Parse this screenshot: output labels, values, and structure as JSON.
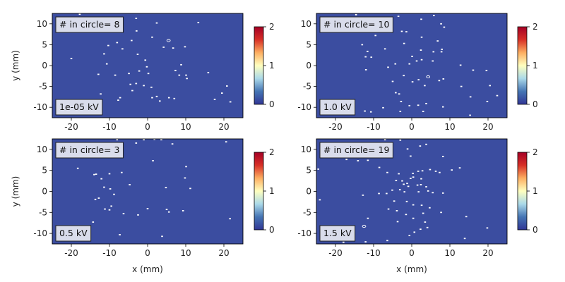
{
  "colors": {
    "background": "#3b4da0",
    "dot": "#ffffff",
    "box_fill": "#d9dceb",
    "box_edge": "#222222",
    "colormap": [
      "#313695",
      "#4575b4",
      "#abd9e9",
      "#ffffbf",
      "#fdae61",
      "#d73027",
      "#a50026"
    ]
  },
  "chart_data": [
    {
      "type": "heatmap",
      "panel": "top-left",
      "title": "",
      "xlabel": "",
      "ylabel": "y (mm)",
      "xlim": [
        -25,
        25
      ],
      "ylim": [
        -12.5,
        12.5
      ],
      "xticks": [
        -20,
        -10,
        0,
        10,
        20
      ],
      "yticks": [
        -10,
        -5,
        0,
        5,
        10
      ],
      "show_xticklabels": true,
      "show_yticklabels": true,
      "count_label": "# in circle= 8",
      "voltage_label": "1e-05 kV",
      "colorbar": {
        "ticks": [
          0,
          1,
          2
        ],
        "range": [
          0,
          2
        ]
      },
      "circle_points": [
        [
          5.5,
          6
        ]
      ],
      "points": [
        [
          -17.8,
          12.3
        ],
        [
          -11,
          11.3
        ],
        [
          -3,
          11.3
        ],
        [
          2.4,
          10.2
        ],
        [
          13.3,
          10.3
        ],
        [
          -2.9,
          8.3
        ],
        [
          1.2,
          6.8
        ],
        [
          -4.2,
          6.0
        ],
        [
          -8,
          5.5
        ],
        [
          -10.3,
          4.8
        ],
        [
          -6.6,
          4.0
        ],
        [
          -11.4,
          2.8
        ],
        [
          -2.6,
          2.7
        ],
        [
          9.8,
          4.5
        ],
        [
          4.2,
          4.4
        ],
        [
          6.7,
          4.2
        ],
        [
          -20,
          1.7
        ],
        [
          -10.7,
          0.4
        ],
        [
          -0.2,
          -0.3
        ],
        [
          -2.2,
          -1.3
        ],
        [
          -12.9,
          -2.1
        ],
        [
          -8.5,
          -2.3
        ],
        [
          -4.9,
          -1.9
        ],
        [
          0.2,
          -1.9
        ],
        [
          7.3,
          -1.2
        ],
        [
          8.3,
          -2.3
        ],
        [
          10.1,
          -2.3
        ],
        [
          15.9,
          -1.7
        ],
        [
          -4.5,
          -4.5
        ],
        [
          -3,
          -4.3
        ],
        [
          -1,
          -4.8
        ],
        [
          -4,
          -6
        ],
        [
          1,
          -5.2
        ],
        [
          -7.2,
          -7.7
        ],
        [
          1.2,
          -7.7
        ],
        [
          2.4,
          -7.4
        ],
        [
          5.6,
          -7.7
        ],
        [
          7,
          -7.9
        ],
        [
          -12.3,
          -6.8
        ],
        [
          -7.7,
          -8.3
        ],
        [
          3.2,
          -8.5
        ],
        [
          19.5,
          -6.6
        ],
        [
          20.8,
          -4.9
        ],
        [
          17.6,
          -8.1
        ],
        [
          21.7,
          -8.7
        ],
        [
          10.3,
          -3.1
        ],
        [
          -0.6,
          1.3
        ],
        [
          8.8,
          0.2
        ]
      ]
    },
    {
      "type": "heatmap",
      "panel": "top-right",
      "title": "",
      "xlabel": "",
      "ylabel": "",
      "xlim": [
        -25,
        25
      ],
      "ylim": [
        -12.5,
        12.5
      ],
      "xticks": [
        -20,
        -10,
        0,
        10,
        20
      ],
      "yticks": [
        -10,
        -5,
        0,
        5,
        10
      ],
      "show_xticklabels": true,
      "show_yticklabels": true,
      "count_label": "# in circle= 10",
      "voltage_label": "1.0 kV",
      "colorbar": {
        "ticks": [
          0,
          1,
          2
        ],
        "range": [
          0,
          2
        ]
      },
      "circle_points": [
        [
          4.3,
          -2.7
        ]
      ],
      "points": [
        [
          -14.6,
          12.2
        ],
        [
          -8.8,
          11.4
        ],
        [
          -3.5,
          11.8
        ],
        [
          2.5,
          11.1
        ],
        [
          5.8,
          12.0
        ],
        [
          7.7,
          10.0
        ],
        [
          8.5,
          9.2
        ],
        [
          -12.6,
          8.1
        ],
        [
          -9.5,
          7.2
        ],
        [
          -2.6,
          8.2
        ],
        [
          -1.4,
          8.1
        ],
        [
          2.6,
          6.8
        ],
        [
          6.8,
          5.9
        ],
        [
          7.9,
          3.9
        ],
        [
          7.8,
          3.3
        ],
        [
          5.7,
          3.3
        ],
        [
          2.4,
          3.7
        ],
        [
          -2.0,
          5.3
        ],
        [
          -7,
          4
        ],
        [
          -13,
          5
        ],
        [
          -11.6,
          3.4
        ],
        [
          -12.1,
          2.1
        ],
        [
          -10.6,
          2.0
        ],
        [
          0.1,
          2.2
        ],
        [
          1.3,
          1.1
        ],
        [
          2.6,
          1.4
        ],
        [
          -12,
          -1
        ],
        [
          -6.2,
          -0.4
        ],
        [
          -4.3,
          0.4
        ],
        [
          -0.6,
          0.4
        ],
        [
          5.5,
          1.1
        ],
        [
          12.8,
          0.1
        ],
        [
          16.1,
          -1.1
        ],
        [
          19.6,
          -1.2
        ],
        [
          -5,
          -3.8
        ],
        [
          -2.1,
          -2.4
        ],
        [
          -4.2,
          -6.5
        ],
        [
          -3.3,
          -6.8
        ],
        [
          0.2,
          -3.9
        ],
        [
          1.8,
          -3.4
        ],
        [
          3.4,
          -4.8
        ],
        [
          7.2,
          -3.6
        ],
        [
          8.3,
          -3.2
        ],
        [
          -2.8,
          -8.6
        ],
        [
          -0.6,
          -9.6
        ],
        [
          -7.5,
          -10.1
        ],
        [
          -12.3,
          -10.9
        ],
        [
          -10.7,
          -11.1
        ],
        [
          1.7,
          -9.5
        ],
        [
          3.8,
          -9.1
        ],
        [
          8.2,
          -9.9
        ],
        [
          15.3,
          -11.9
        ],
        [
          15.4,
          -7.5
        ],
        [
          19.8,
          -8.6
        ],
        [
          20.5,
          -4.8
        ],
        [
          22.4,
          -7.2
        ],
        [
          13,
          -5
        ],
        [
          -3,
          -11
        ],
        [
          3,
          -11
        ]
      ]
    },
    {
      "type": "heatmap",
      "panel": "bottom-left",
      "title": "",
      "xlabel": "x (mm)",
      "ylabel": "y (mm)",
      "xlim": [
        -25,
        25
      ],
      "ylim": [
        -12.5,
        12.5
      ],
      "xticks": [
        -20,
        -10,
        0,
        10,
        20
      ],
      "yticks": [
        -10,
        -5,
        0,
        5,
        10
      ],
      "show_xticklabels": true,
      "show_yticklabels": true,
      "count_label": "# in circle= 3",
      "voltage_label": "0.5 kV",
      "colorbar": {
        "ticks": [
          0,
          1,
          2
        ],
        "range": [
          0,
          2
        ]
      },
      "circle_points": [],
      "points": [
        [
          -8,
          12.3
        ],
        [
          -1,
          12.3
        ],
        [
          1.8,
          12.4
        ],
        [
          3.6,
          12.3
        ],
        [
          -3,
          11.5
        ],
        [
          6.5,
          11.3
        ],
        [
          20.6,
          11.8
        ],
        [
          -18.3,
          5.5
        ],
        [
          -13.5,
          4.1
        ],
        [
          -10,
          4.2
        ],
        [
          -6.8,
          4.5
        ],
        [
          1.4,
          7.3
        ],
        [
          10.1,
          5.9
        ],
        [
          -12.1,
          3
        ],
        [
          -14,
          4
        ],
        [
          -11.4,
          1.0
        ],
        [
          9.8,
          3.2
        ],
        [
          -9.8,
          0.6
        ],
        [
          -4.7,
          1.6
        ],
        [
          4.8,
          0.9
        ],
        [
          11.2,
          0.7
        ],
        [
          -8.8,
          -0.7
        ],
        [
          -13.7,
          -1.9
        ],
        [
          -11.2,
          -4.2
        ],
        [
          -10,
          -4.4
        ],
        [
          -2.5,
          -5.6
        ],
        [
          0,
          -4.1
        ],
        [
          5,
          -4.3
        ],
        [
          5.6,
          -4.9
        ],
        [
          9.3,
          -4.6
        ],
        [
          -6.3,
          -5.3
        ],
        [
          -9.5,
          -3.5
        ],
        [
          21.6,
          -6.5
        ],
        [
          -7.3,
          -10.3
        ],
        [
          3.8,
          -10.7
        ],
        [
          -14.3,
          -7.3
        ],
        [
          -12.8,
          -1.6
        ]
      ]
    },
    {
      "type": "heatmap",
      "panel": "bottom-right",
      "title": "",
      "xlabel": "x (mm)",
      "ylabel": "",
      "xlim": [
        -25,
        25
      ],
      "ylim": [
        -12.5,
        12.5
      ],
      "xticks": [
        -20,
        -10,
        0,
        10,
        20
      ],
      "yticks": [
        -10,
        -5,
        0,
        5,
        10
      ],
      "show_xticklabels": true,
      "show_yticklabels": true,
      "count_label": "# in circle= 19",
      "voltage_label": "1.5 kV",
      "colorbar": {
        "ticks": [
          0,
          1,
          2
        ],
        "range": [
          0,
          2
        ]
      },
      "circle_points": [
        [
          -12.5,
          -8.3
        ]
      ],
      "points": [
        [
          -7,
          12.3
        ],
        [
          -3,
          12.2
        ],
        [
          3.8,
          11.2
        ],
        [
          2.2,
          10.8
        ],
        [
          -1.1,
          10.1
        ],
        [
          -0.3,
          8.4
        ],
        [
          8.2,
          8.3
        ],
        [
          -17.1,
          7.6
        ],
        [
          -14.1,
          7.3
        ],
        [
          -11.5,
          7.4
        ],
        [
          -8.5,
          5.7
        ],
        [
          -24.5,
          5.3
        ],
        [
          -6.4,
          4.5
        ],
        [
          -3.4,
          4.2
        ],
        [
          0.3,
          4.3
        ],
        [
          1.7,
          4.8
        ],
        [
          2.8,
          4.9
        ],
        [
          4.8,
          5.2
        ],
        [
          6.3,
          4.8
        ],
        [
          7.3,
          4.5
        ],
        [
          10.5,
          5.1
        ],
        [
          12.6,
          5.6
        ],
        [
          -4.1,
          2.6
        ],
        [
          -2.5,
          2.5
        ],
        [
          -2.1,
          1.7
        ],
        [
          -1.2,
          1.9
        ],
        [
          -0.3,
          3.1
        ],
        [
          0.4,
          3.4
        ],
        [
          2.5,
          3.0
        ],
        [
          -5.1,
          0.3
        ],
        [
          -3.1,
          0.4
        ],
        [
          -0.9,
          1.2
        ],
        [
          1.5,
          1.5
        ],
        [
          2.4,
          1.6
        ],
        [
          3.8,
          1.1
        ],
        [
          4.3,
          0.1
        ],
        [
          5.5,
          -0.3
        ],
        [
          -12.8,
          -0.9
        ],
        [
          -6.6,
          -0.5
        ],
        [
          -1.9,
          -0.1
        ],
        [
          1.8,
          -0.1
        ],
        [
          8.2,
          -0.4
        ],
        [
          -24.1,
          -2.0
        ],
        [
          -4.6,
          -2.3
        ],
        [
          -1.3,
          -2.4
        ],
        [
          0.4,
          -3.2
        ],
        [
          2.6,
          -3.3
        ],
        [
          4.7,
          -3.9
        ],
        [
          -6.1,
          -4.2
        ],
        [
          -3.9,
          -4.6
        ],
        [
          -1.5,
          -5.5
        ],
        [
          3,
          -5.2
        ],
        [
          7.7,
          -5.0
        ],
        [
          -11.5,
          -6.4
        ],
        [
          -3.7,
          -7.2
        ],
        [
          0.4,
          -6.4
        ],
        [
          3.5,
          -7.3
        ],
        [
          4.1,
          -8.6
        ],
        [
          0.7,
          -9.7
        ],
        [
          14.3,
          -6.0
        ],
        [
          19.8,
          -8.7
        ],
        [
          -6.4,
          -11.7
        ],
        [
          13.9,
          -11.2
        ],
        [
          -17.9,
          -12.1
        ],
        [
          -12.1,
          -12.0
        ],
        [
          -0.6,
          -10.5
        ],
        [
          2.3,
          -9
        ],
        [
          -8.6,
          -0.5
        ]
      ]
    }
  ]
}
